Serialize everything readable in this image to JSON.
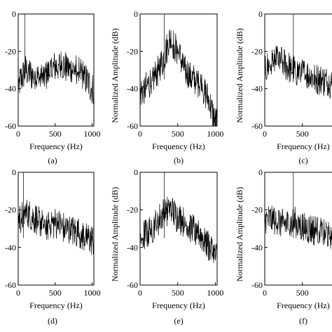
{
  "chart_data": [
    {
      "panel": "(a)",
      "type": "line",
      "xlabel": "Frequency (Hz)",
      "ylabel": "",
      "xlim": [
        0,
        1024
      ],
      "ylim": [
        -60,
        0
      ],
      "xticks": [
        "0",
        "500",
        "1000"
      ],
      "yticks": [
        "0",
        "-20",
        "-40",
        "-60"
      ],
      "series": [
        {
          "x": [
            0,
            100,
            200,
            300,
            400,
            500,
            600,
            700,
            800,
            900,
            1000
          ],
          "values": [
            -38,
            -30,
            -33,
            -35,
            -32,
            -28,
            -27,
            -30,
            -29,
            -34,
            -40
          ]
        }
      ],
      "spike": {
        "x": 90,
        "value": 0
      }
    },
    {
      "panel": "(b)",
      "type": "line",
      "xlabel": "Frequency (Hz)",
      "ylabel": "Normalized Amplitude (dB)",
      "xlim": [
        0,
        1024
      ],
      "ylim": [
        -60,
        0
      ],
      "xticks": [
        "0",
        "500",
        "1000"
      ],
      "yticks": [
        "0",
        "-20",
        "-40",
        "-60"
      ],
      "series": [
        {
          "x": [
            0,
            100,
            200,
            300,
            400,
            500,
            600,
            700,
            800,
            900,
            1000
          ],
          "values": [
            -42,
            -38,
            -33,
            -25,
            -13,
            -20,
            -30,
            -35,
            -37,
            -45,
            -58
          ]
        }
      ],
      "spike": {
        "x": 320,
        "value": 0
      }
    },
    {
      "panel": "(c)",
      "type": "line",
      "xlabel": "Frequency (Hz)",
      "ylabel": "Normalized Amplitude (dB)",
      "xlim": [
        0,
        1024
      ],
      "ylim": [
        -60,
        0
      ],
      "xticks": [
        "0",
        "500"
      ],
      "yticks": [
        "0",
        "-20",
        "-40",
        "-60"
      ],
      "series": [
        {
          "x": [
            0,
            100,
            200,
            300,
            400,
            500,
            600,
            700,
            800,
            900,
            1000
          ],
          "values": [
            -30,
            -25,
            -24,
            -28,
            -30,
            -32,
            -33,
            -35,
            -36,
            -38,
            -40
          ]
        }
      ],
      "spike": {
        "x": 380,
        "value": 0
      }
    },
    {
      "panel": "(d)",
      "type": "line",
      "xlabel": "Frequency (Hz)",
      "ylabel": "",
      "xlim": [
        0,
        1024
      ],
      "ylim": [
        -60,
        0
      ],
      "xticks": [
        "0",
        "500",
        "1000"
      ],
      "yticks": [
        "0",
        "-20",
        "-40",
        "-60"
      ],
      "series": [
        {
          "x": [
            0,
            100,
            200,
            300,
            400,
            500,
            600,
            700,
            800,
            900,
            1000
          ],
          "values": [
            -25,
            -22,
            -24,
            -26,
            -28,
            -27,
            -29,
            -31,
            -32,
            -34,
            -36
          ]
        }
      ],
      "spike": {
        "x": 70,
        "value": 0
      }
    },
    {
      "panel": "(e)",
      "type": "line",
      "xlabel": "Frequency (Hz)",
      "ylabel": "Normalized Amplitude (dB)",
      "xlim": [
        0,
        1024
      ],
      "ylim": [
        -60,
        0
      ],
      "xticks": [
        "0",
        "500",
        "1000"
      ],
      "yticks": [
        "0",
        "-20",
        "-40",
        "-60"
      ],
      "series": [
        {
          "x": [
            0,
            100,
            200,
            300,
            400,
            500,
            600,
            700,
            800,
            900,
            1000
          ],
          "values": [
            -35,
            -32,
            -28,
            -22,
            -20,
            -24,
            -27,
            -30,
            -33,
            -38,
            -45
          ]
        }
      ],
      "spike": {
        "x": 320,
        "value": 0
      }
    },
    {
      "panel": "(f)",
      "type": "line",
      "xlabel": "Frequency (Hz)",
      "ylabel": "Normalized Amplitude (dB)",
      "xlim": [
        0,
        1024
      ],
      "ylim": [
        -60,
        0
      ],
      "xticks": [
        "0",
        "500"
      ],
      "yticks": [
        "0",
        "-20",
        "-40",
        "-60"
      ],
      "series": [
        {
          "x": [
            0,
            100,
            200,
            300,
            400,
            500,
            600,
            700,
            800,
            900,
            1000
          ],
          "values": [
            -26,
            -25,
            -26,
            -28,
            -27,
            -29,
            -30,
            -31,
            -32,
            -33,
            -34
          ]
        }
      ],
      "spike": {
        "x": 380,
        "value": 0
      }
    }
  ]
}
